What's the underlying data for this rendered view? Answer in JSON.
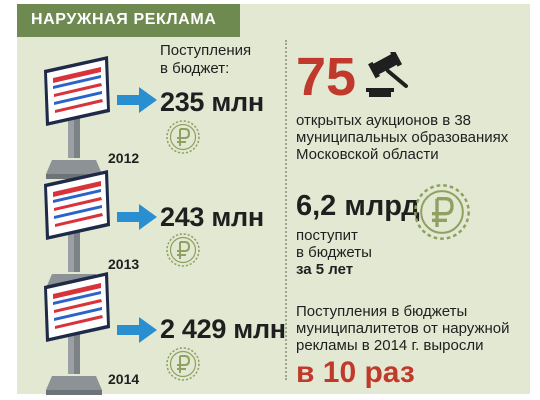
{
  "header": {
    "title": "НАРУЖНАЯ РЕКЛАМА"
  },
  "intro": {
    "line1": "Поступления",
    "line2": "в бюджет:"
  },
  "years": [
    {
      "year": "2012",
      "amount": "235 млн"
    },
    {
      "year": "2013",
      "amount": "243 млн"
    },
    {
      "year": "2014",
      "amount": "2 429 млн"
    }
  ],
  "auctions": {
    "count": "75",
    "line1": "открытых аукционов в 38",
    "line2": "муниципальных образованиях",
    "line3": "Московской области"
  },
  "total": {
    "amount": "6,2 млрд",
    "line1": "поступит",
    "line2": "в бюджеты",
    "line3": "за 5 лет"
  },
  "growth": {
    "line1": "Поступления в бюджеты",
    "line2": "муниципалитетов от наружной",
    "line3": "рекламы в 2014 г. выросли",
    "times": "в 10 раз"
  },
  "icons": {
    "billboard": "billboard-icon",
    "arrow": "arrow-right-icon",
    "coin": "ruble-coin-icon",
    "gavel": "gavel-icon"
  },
  "colors": {
    "panel": "#e3e8d3",
    "header": "#6f8a51",
    "arrow": "#2a8fd0",
    "accent_red": "#c0392b",
    "coin": "#8fa060"
  }
}
